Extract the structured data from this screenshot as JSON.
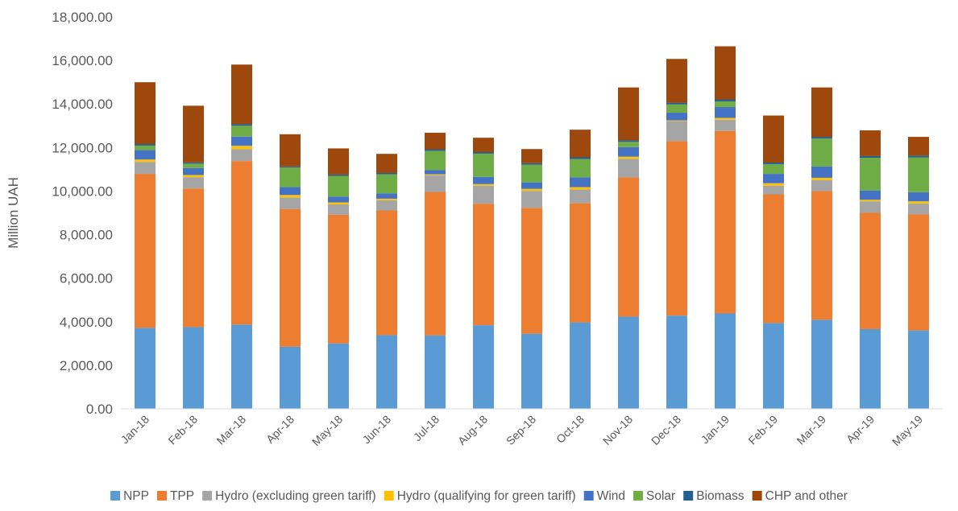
{
  "chart_data": {
    "type": "bar",
    "stacked": true,
    "title": "",
    "xlabel": "",
    "ylabel": "Million UAH",
    "ylim": [
      0,
      18000
    ],
    "yticks": [
      "0.00",
      "2,000.00",
      "4,000.00",
      "6,000.00",
      "8,000.00",
      "10,000.00",
      "12,000.00",
      "14,000.00",
      "16,000.00",
      "18,000.00"
    ],
    "grid": false,
    "legend_position": "bottom",
    "categories": [
      "Jan-18",
      "Feb-18",
      "Mar-18",
      "Apr-18",
      "May-18",
      "Jun-18",
      "Jul-18",
      "Aug-18",
      "Sep-18",
      "Oct-18",
      "Nov-18",
      "Dec-18",
      "Jan-19",
      "Feb-19",
      "Mar-19",
      "Apr-19",
      "May-19"
    ],
    "series": [
      {
        "name": "NPP",
        "color": "#5B9BD5",
        "values": [
          3720,
          3750,
          3870,
          2850,
          3000,
          3380,
          3370,
          3840,
          3450,
          3970,
          4230,
          4280,
          4380,
          3940,
          4090,
          3660,
          3600
        ]
      },
      {
        "name": "TPP",
        "color": "#ED7D31",
        "values": [
          7070,
          6370,
          7510,
          6330,
          5910,
          5730,
          6590,
          5580,
          5780,
          5470,
          6400,
          8020,
          8380,
          5910,
          5910,
          5340,
          5330
        ]
      },
      {
        "name": "Hydro (excluding green tariff)",
        "color": "#A5A5A5",
        "values": [
          550,
          520,
          550,
          530,
          480,
          470,
          770,
          830,
          780,
          630,
          850,
          920,
          520,
          400,
          500,
          530,
          500
        ]
      },
      {
        "name": "Hydro (qualifying for green tariff)",
        "color": "#FFC000",
        "values": [
          110,
          100,
          150,
          110,
          90,
          70,
          40,
          70,
          90,
          110,
          100,
          30,
          80,
          110,
          110,
          70,
          100
        ]
      },
      {
        "name": "Wind",
        "color": "#4472C4",
        "values": [
          430,
          320,
          420,
          360,
          270,
          240,
          190,
          330,
          300,
          450,
          440,
          350,
          500,
          430,
          520,
          430,
          420
        ]
      },
      {
        "name": "Solar",
        "color": "#70AD47",
        "values": [
          210,
          200,
          500,
          900,
          950,
          880,
          890,
          1070,
          810,
          840,
          240,
          380,
          260,
          450,
          1280,
          1500,
          1600
        ]
      },
      {
        "name": "Biomass",
        "color": "#255E91",
        "values": [
          70,
          60,
          80,
          50,
          60,
          60,
          70,
          70,
          70,
          80,
          70,
          80,
          90,
          70,
          80,
          80,
          80
        ]
      },
      {
        "name": "CHP and other",
        "color": "#9E480E",
        "values": [
          2840,
          2600,
          2730,
          1480,
          1200,
          880,
          760,
          660,
          650,
          1270,
          2430,
          2010,
          2440,
          2160,
          2270,
          1180,
          860
        ]
      }
    ]
  }
}
